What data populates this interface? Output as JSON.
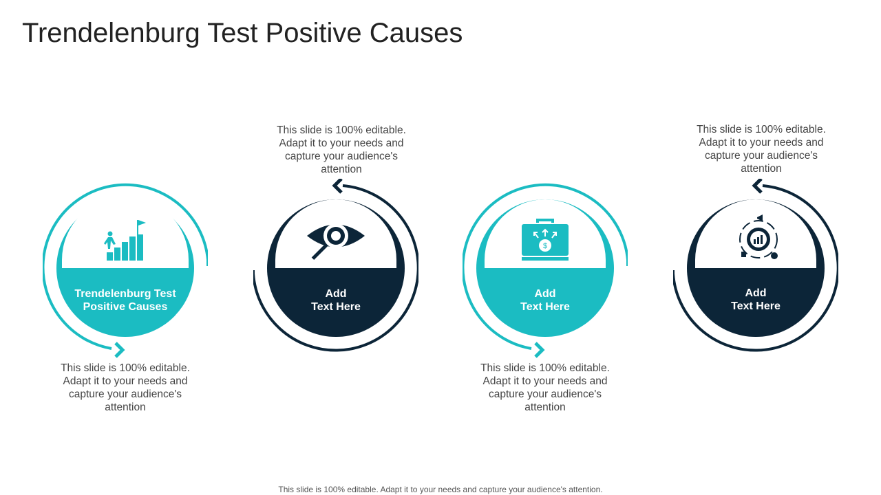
{
  "title": "Trendelenburg Test Positive Causes",
  "colors": {
    "teal": "#1bbcc2",
    "navy": "#0c2538"
  },
  "steps": [
    {
      "label": "Trendelenburg Test\nPositive Causes",
      "icon": "stairs-goal-icon",
      "color": "teal",
      "description": "This slide is 100% editable. Adapt it to your needs and capture your audience's attention"
    },
    {
      "label": "Add\nText Here",
      "icon": "eye-magnifier-icon",
      "color": "navy",
      "description": "This slide is 100% editable. Adapt it to your needs and capture your audience's attention"
    },
    {
      "label": "Add\nText Here",
      "icon": "money-briefcase-icon",
      "color": "teal",
      "description": "This slide is 100% editable. Adapt it to your needs and capture your audience's attention"
    },
    {
      "label": "Add\nText Here",
      "icon": "marketing-gear-icon",
      "color": "navy",
      "description": "This slide is 100% editable. Adapt it to your needs and capture your audience's attention"
    }
  ],
  "footer": "This slide is 100% editable. Adapt it to your needs and capture your audience's attention."
}
